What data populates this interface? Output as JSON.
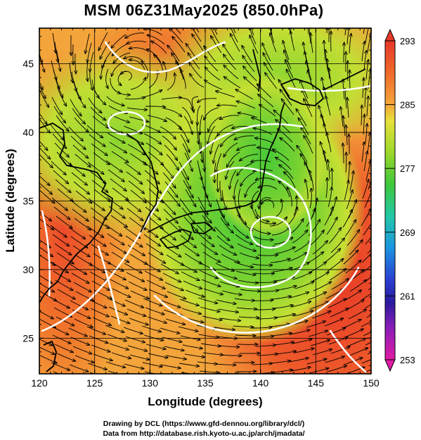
{
  "title": "MSM 06Z31May2025 (850.0hPa)",
  "credits": {
    "line1": "Drawing by DCL (https://www.gfd-dennou.org/library/dcl/)",
    "line2": "Data from http://database.rish.kyoto-u.ac.jp/arch/jmadata/"
  },
  "chart_data": {
    "type": "heatmap",
    "title": "MSM 06Z31May2025 (850.0hPa)",
    "xlabel": "Longitude (degrees)",
    "ylabel": "Latitude  (degrees)",
    "xlim": [
      120,
      150
    ],
    "ylim": [
      22.4,
      47.6
    ],
    "x_ticks": [
      120,
      125,
      130,
      135,
      140,
      145,
      150
    ],
    "y_ticks": [
      25,
      30,
      35,
      40,
      45
    ],
    "grid": true,
    "overlays": [
      "temperature shading",
      "wind streamlines",
      "white contour lines",
      "coastlines"
    ],
    "colorbar": {
      "ticks": [
        293,
        285,
        277,
        269,
        261,
        253
      ],
      "min": 253,
      "max": 293,
      "colors_top_to_bottom": [
        "#e8382a",
        "#f07a2a",
        "#f4b640",
        "#e8e83a",
        "#a8dc2c",
        "#4ec82e",
        "#2ec89a",
        "#1aa0e0",
        "#2c54d8",
        "#2a1ab0",
        "#7a1cb8",
        "#d81ca8"
      ]
    },
    "features": {
      "low_center": {
        "lon": 141,
        "lat": 34,
        "label": "cyclonic circulation southeast of Honshu"
      },
      "warm_region_east": "southeast Pacific (warm, red)",
      "cool_region": "central Japan and surrounding (green)"
    }
  }
}
